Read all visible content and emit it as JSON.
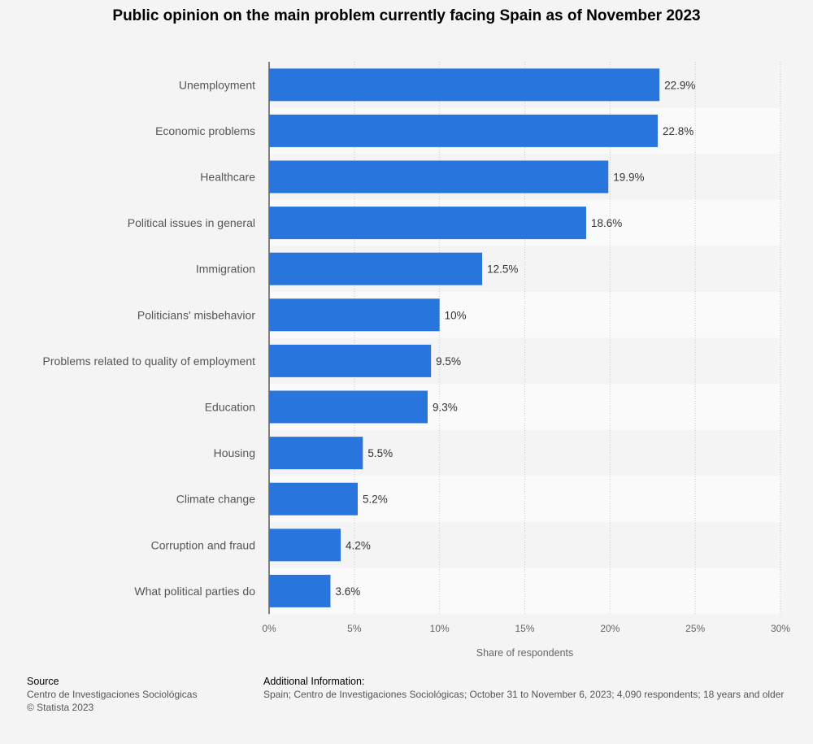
{
  "chart_data": {
    "type": "bar",
    "orientation": "horizontal",
    "title": "Public opinion on the main problem currently facing Spain as of November 2023",
    "categories": [
      "Unemployment",
      "Economic problems",
      "Healthcare",
      "Political issues in general",
      "Immigration",
      "Politicians' misbehavior",
      "Problems related to quality of employment",
      "Education",
      "Housing",
      "Climate change",
      "Corruption and fraud",
      "What political parties do"
    ],
    "values": [
      22.9,
      22.8,
      19.9,
      18.6,
      12.5,
      10,
      9.5,
      9.3,
      5.5,
      5.2,
      4.2,
      3.6
    ],
    "value_labels": [
      "22.9%",
      "22.8%",
      "19.9%",
      "18.6%",
      "12.5%",
      "10%",
      "9.5%",
      "9.3%",
      "5.5%",
      "5.2%",
      "4.2%",
      "3.6%"
    ],
    "xlabel": "Share of respondents",
    "ylabel": "",
    "xlim": [
      0,
      30
    ],
    "xticks": [
      0,
      5,
      10,
      15,
      20,
      25,
      30
    ],
    "xtick_labels": [
      "0%",
      "5%",
      "10%",
      "15%",
      "20%",
      "25%",
      "30%"
    ],
    "grid": true,
    "bar_color": "#2876dd"
  },
  "footer": {
    "source_heading": "Source",
    "source_text": "Centro de Investigaciones Sociológicas",
    "copyright": "© Statista 2023",
    "info_heading": "Additional Information:",
    "info_text": "Spain; Centro de Investigaciones Sociológicas; October 31 to November 6, 2023; 4,090 respondents; 18 years and older"
  }
}
